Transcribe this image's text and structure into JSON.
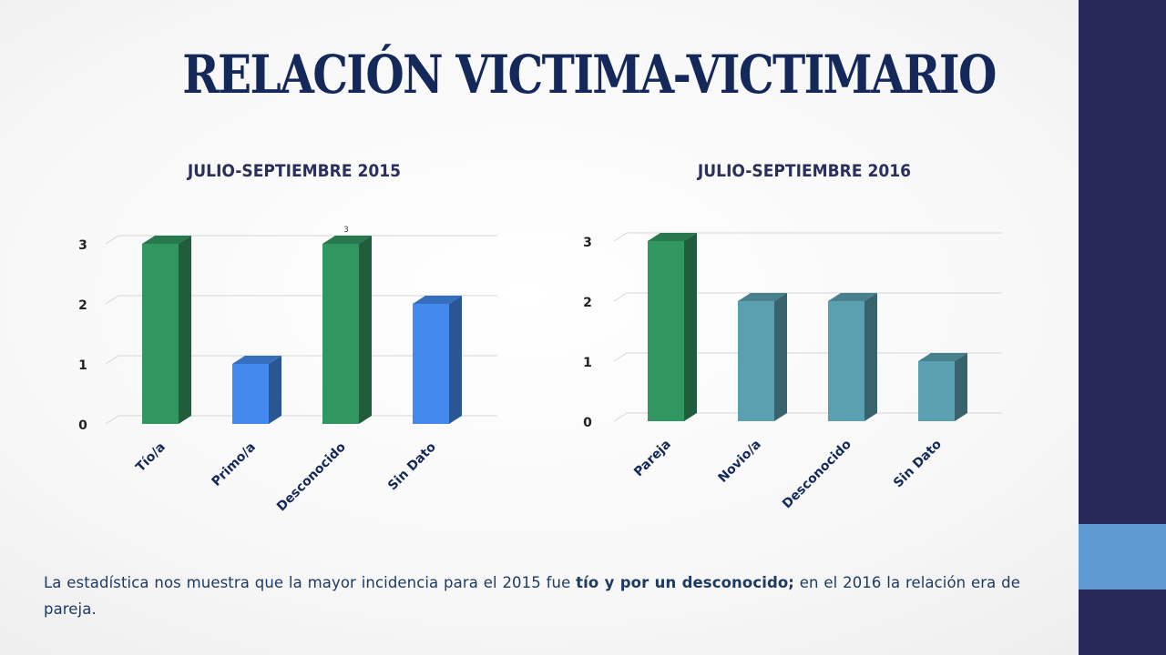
{
  "slide": {
    "title": "RELACIÓN VICTIMA-VICTIMARIO",
    "caption": {
      "part1": "La estadística nos muestra que la mayor incidencia para el 2015 fue ",
      "bold": "tío y por un desconocido;",
      "part2": " en el 2016 la relación era de pareja."
    },
    "colors": {
      "band": "#262957",
      "accent": "#5f9bd1",
      "title": "#14285a"
    }
  },
  "chart_data": [
    {
      "type": "bar",
      "title": "JULIO-SEPTIEMBRE 2015",
      "categories": [
        "Tío/a",
        "Primo/a",
        "Desconocido",
        "Sin Dato"
      ],
      "values": [
        3,
        1,
        3,
        2
      ],
      "bar_colors": [
        "#329660",
        "#448aee",
        "#329660",
        "#448aee"
      ],
      "data_labels": [
        null,
        null,
        "3",
        null
      ],
      "yticks": [
        "0",
        "1",
        "2",
        "3"
      ],
      "ylim": [
        0,
        3
      ],
      "grid": true,
      "legend": "none",
      "xlabel": "",
      "ylabel": ""
    },
    {
      "type": "bar",
      "title": "JULIO-SEPTIEMBRE 2016",
      "categories": [
        "Pareja",
        "Novio/a",
        "Desconocido",
        "Sin Dato"
      ],
      "values": [
        3,
        2,
        2,
        1
      ],
      "bar_colors": [
        "#329660",
        "#5aa0b0",
        "#5aa0b0",
        "#5aa0b0"
      ],
      "data_labels": [
        null,
        null,
        null,
        null
      ],
      "yticks": [
        "0",
        "1",
        "2",
        "3"
      ],
      "ylim": [
        0,
        3
      ],
      "grid": true,
      "legend": "none",
      "xlabel": "",
      "ylabel": ""
    }
  ]
}
